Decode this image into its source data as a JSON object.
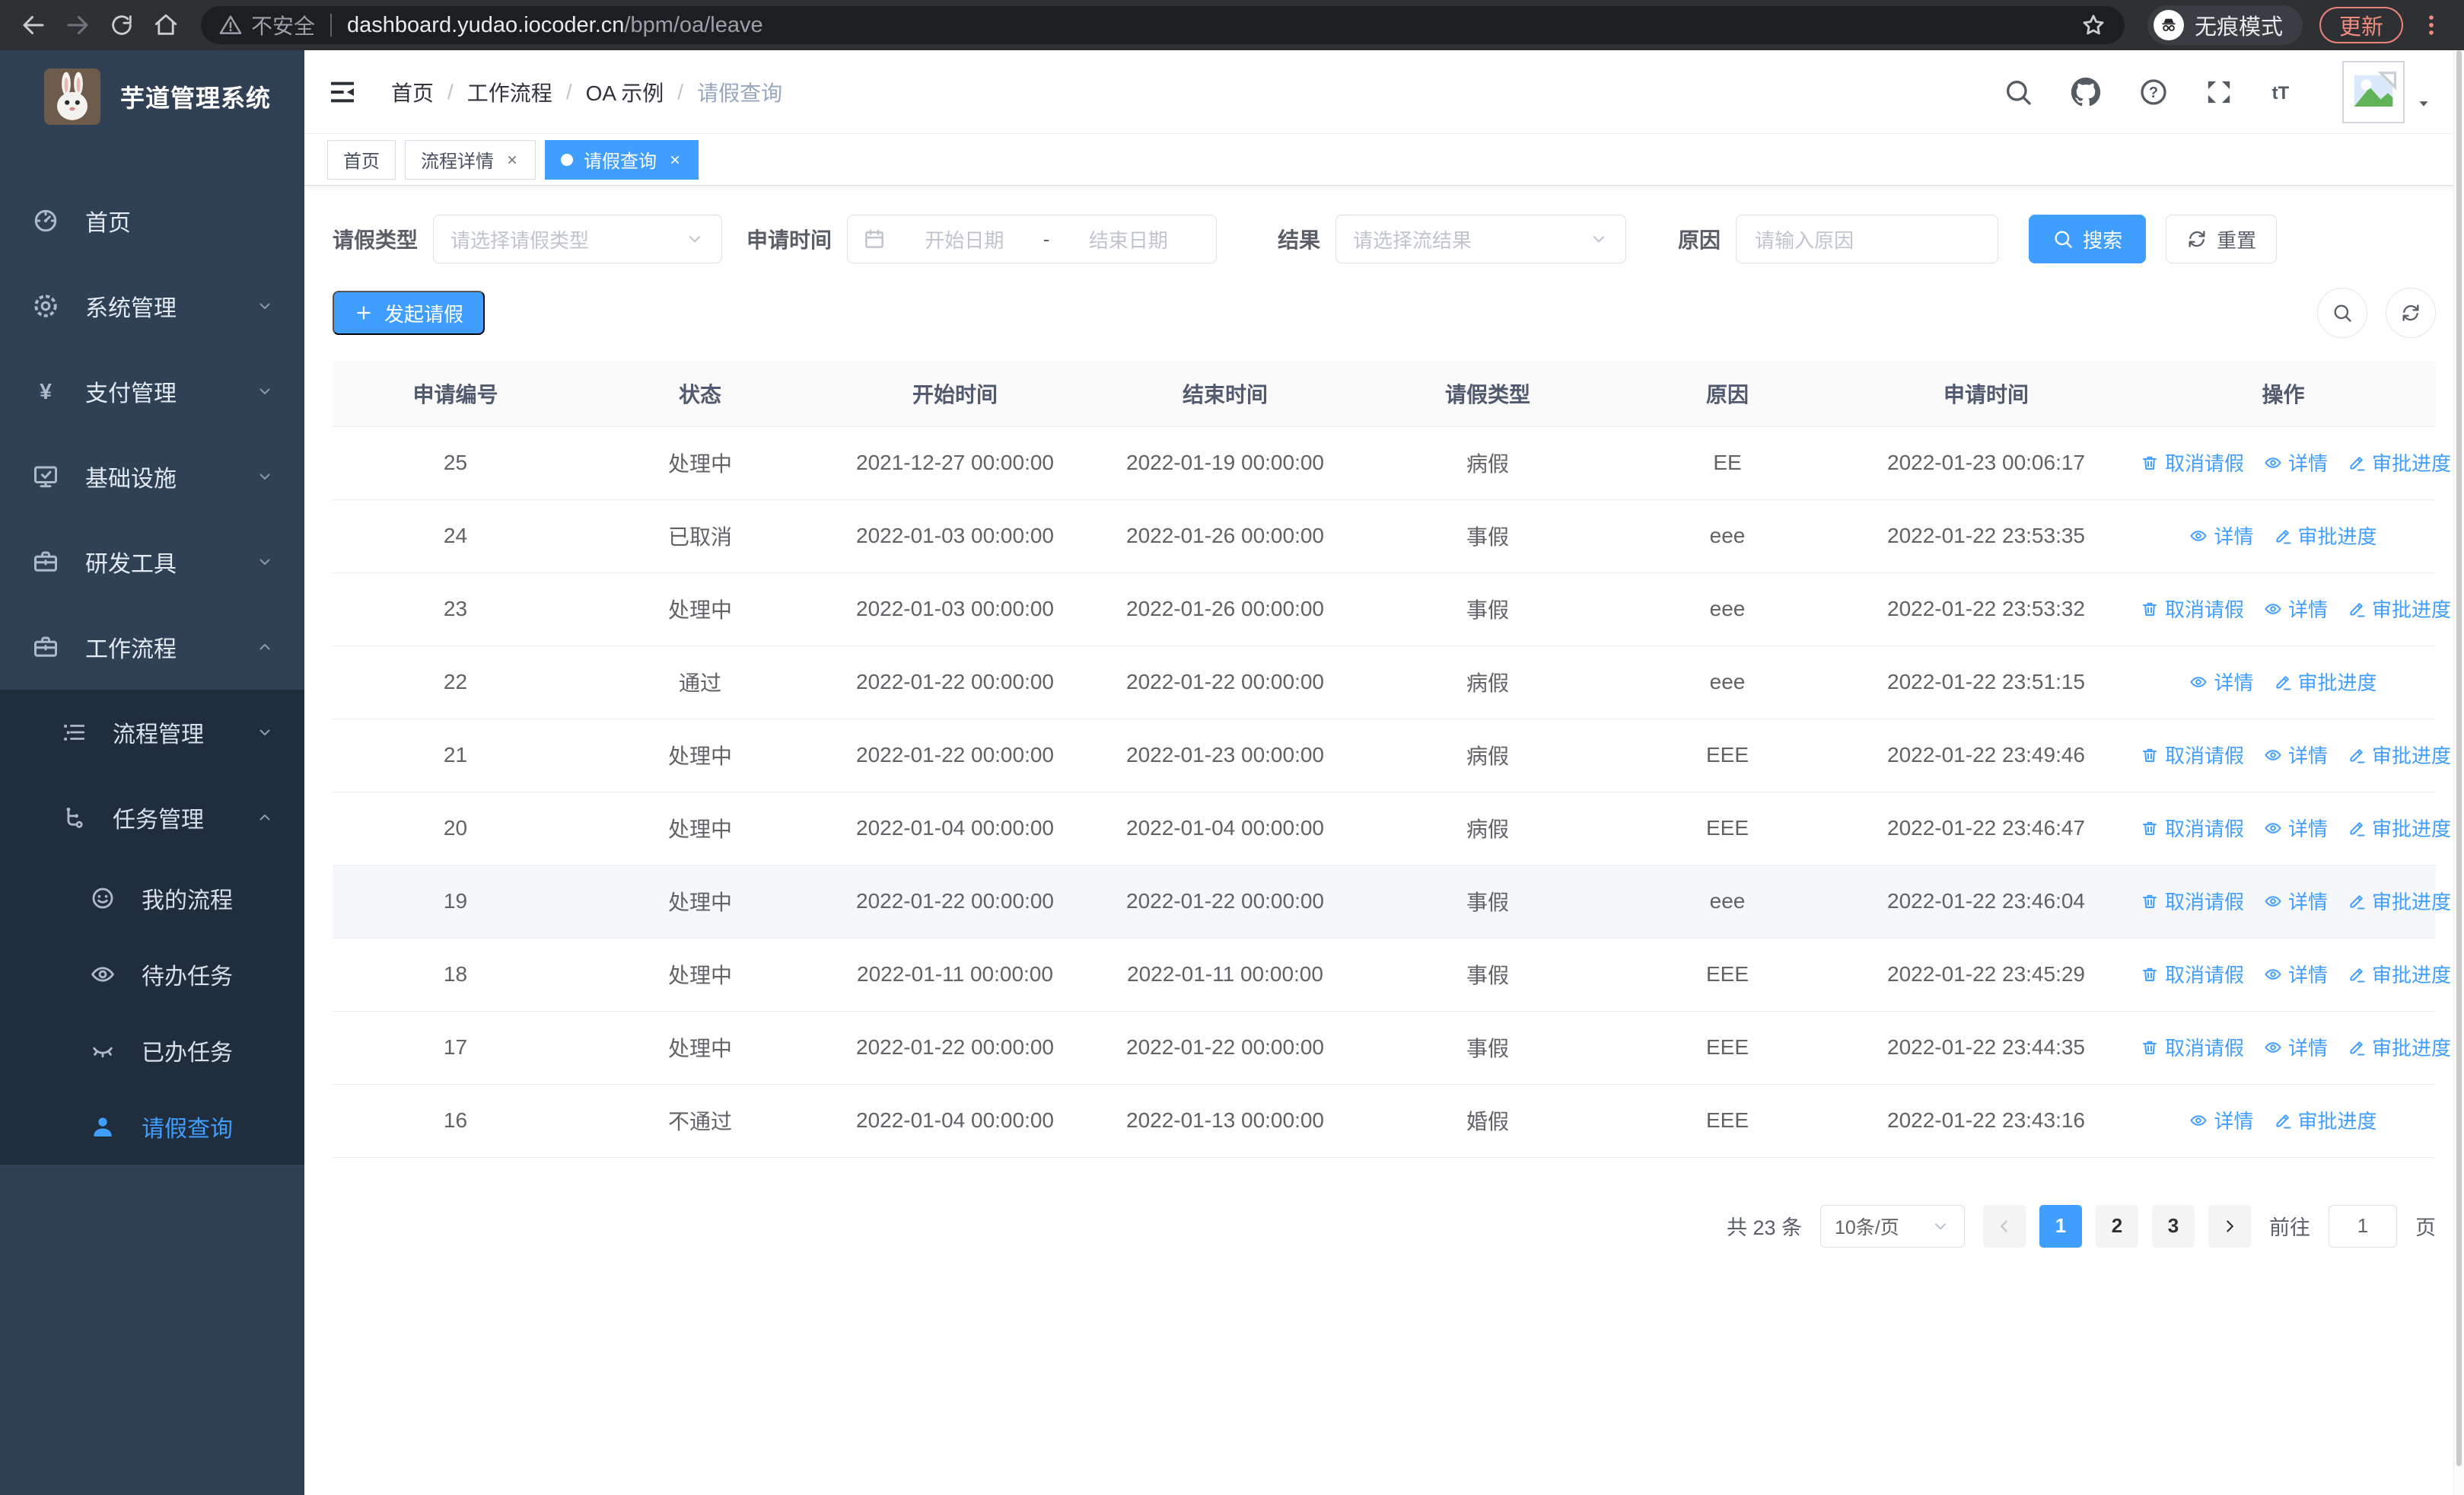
{
  "browser": {
    "security_label": "不安全",
    "url_host": "dashboard.yudao.iocoder.cn",
    "url_path": "/bpm/oa/leave",
    "incognito_label": "无痕模式",
    "update_label": "更新"
  },
  "sidebar": {
    "logo_title": "芋道管理系统",
    "menu": [
      {
        "icon": "dashboard-icon",
        "label": "首页",
        "level": 1
      },
      {
        "icon": "gear-icon",
        "label": "系统管理",
        "level": 1,
        "chevron": "down"
      },
      {
        "icon": "yen-icon",
        "label": "支付管理",
        "level": 1,
        "chevron": "down"
      },
      {
        "icon": "monitor-icon",
        "label": "基础设施",
        "level": 1,
        "chevron": "down"
      },
      {
        "icon": "briefcase-icon",
        "label": "研发工具",
        "level": 1,
        "chevron": "down"
      },
      {
        "icon": "briefcase-icon",
        "label": "工作流程",
        "level": 1,
        "chevron": "up"
      },
      {
        "icon": "list-icon",
        "label": "流程管理",
        "level": 2,
        "chevron": "down",
        "dark": true
      },
      {
        "icon": "branch-icon",
        "label": "任务管理",
        "level": 2,
        "chevron": "up",
        "dark": true
      },
      {
        "icon": "robot-icon",
        "label": "我的流程",
        "level": 3,
        "dark": true
      },
      {
        "icon": "eye-icon",
        "label": "待办任务",
        "level": 3,
        "dark": true
      },
      {
        "icon": "eye-closed-icon",
        "label": "已办任务",
        "level": 3,
        "dark": true
      },
      {
        "icon": "user-icon",
        "label": "请假查询",
        "level": 3,
        "dark": true,
        "active": true
      }
    ]
  },
  "header": {
    "breadcrumbs": [
      "首页",
      "工作流程",
      "OA 示例",
      "请假查询"
    ],
    "separator": "/",
    "fontsize_glyph": "tT"
  },
  "tabs": [
    {
      "label": "首页",
      "closable": false,
      "active": false
    },
    {
      "label": "流程详情",
      "closable": true,
      "active": false
    },
    {
      "label": "请假查询",
      "closable": true,
      "active": true
    }
  ],
  "filters": {
    "type_label": "请假类型",
    "type_placeholder": "请选择请假类型",
    "time_label": "申请时间",
    "start_placeholder": "开始日期",
    "separator": "-",
    "end_placeholder": "结束日期",
    "result_label": "结果",
    "result_placeholder": "请选择流结果",
    "reason_label": "原因",
    "reason_placeholder": "请输入原因",
    "search_label": "搜索",
    "reset_label": "重置"
  },
  "toolbar": {
    "create_label": "发起请假"
  },
  "table": {
    "headers": [
      "申请编号",
      "状态",
      "开始时间",
      "结束时间",
      "请假类型",
      "原因",
      "申请时间",
      "操作"
    ],
    "actions": {
      "cancel": "取消请假",
      "detail": "详情",
      "progress": "审批进度"
    },
    "rows": [
      {
        "id": "25",
        "status": "处理中",
        "start": "2021-12-27 00:00:00",
        "end": "2022-01-19 00:00:00",
        "type": "病假",
        "reason": "EE",
        "apply_time": "2022-01-23 00:06:17",
        "can_cancel": true,
        "highlight": false
      },
      {
        "id": "24",
        "status": "已取消",
        "start": "2022-01-03 00:00:00",
        "end": "2022-01-26 00:00:00",
        "type": "事假",
        "reason": "eee",
        "apply_time": "2022-01-22 23:53:35",
        "can_cancel": false,
        "highlight": false
      },
      {
        "id": "23",
        "status": "处理中",
        "start": "2022-01-03 00:00:00",
        "end": "2022-01-26 00:00:00",
        "type": "事假",
        "reason": "eee",
        "apply_time": "2022-01-22 23:53:32",
        "can_cancel": true,
        "highlight": false
      },
      {
        "id": "22",
        "status": "通过",
        "start": "2022-01-22 00:00:00",
        "end": "2022-01-22 00:00:00",
        "type": "病假",
        "reason": "eee",
        "apply_time": "2022-01-22 23:51:15",
        "can_cancel": false,
        "highlight": false
      },
      {
        "id": "21",
        "status": "处理中",
        "start": "2022-01-22 00:00:00",
        "end": "2022-01-23 00:00:00",
        "type": "病假",
        "reason": "EEE",
        "apply_time": "2022-01-22 23:49:46",
        "can_cancel": true,
        "highlight": false
      },
      {
        "id": "20",
        "status": "处理中",
        "start": "2022-01-04 00:00:00",
        "end": "2022-01-04 00:00:00",
        "type": "病假",
        "reason": "EEE",
        "apply_time": "2022-01-22 23:46:47",
        "can_cancel": true,
        "highlight": false
      },
      {
        "id": "19",
        "status": "处理中",
        "start": "2022-01-22 00:00:00",
        "end": "2022-01-22 00:00:00",
        "type": "事假",
        "reason": "eee",
        "apply_time": "2022-01-22 23:46:04",
        "can_cancel": true,
        "highlight": true
      },
      {
        "id": "18",
        "status": "处理中",
        "start": "2022-01-11 00:00:00",
        "end": "2022-01-11 00:00:00",
        "type": "事假",
        "reason": "EEE",
        "apply_time": "2022-01-22 23:45:29",
        "can_cancel": true,
        "highlight": false
      },
      {
        "id": "17",
        "status": "处理中",
        "start": "2022-01-22 00:00:00",
        "end": "2022-01-22 00:00:00",
        "type": "事假",
        "reason": "EEE",
        "apply_time": "2022-01-22 23:44:35",
        "can_cancel": true,
        "highlight": false
      },
      {
        "id": "16",
        "status": "不通过",
        "start": "2022-01-04 00:00:00",
        "end": "2022-01-13 00:00:00",
        "type": "婚假",
        "reason": "EEE",
        "apply_time": "2022-01-22 23:43:16",
        "can_cancel": false,
        "highlight": false
      }
    ]
  },
  "pagination": {
    "total": "共 23 条",
    "page_size": "10条/页",
    "pages": [
      "1",
      "2",
      "3"
    ],
    "active_page": "1",
    "goto_label": "前往",
    "goto_value": "1",
    "unit_label": "页"
  },
  "colors": {
    "accent": "#409EFF",
    "sidebar_bg": "#304156",
    "submenu_bg": "#1F2D3D",
    "update_accent": "#F08B80"
  }
}
